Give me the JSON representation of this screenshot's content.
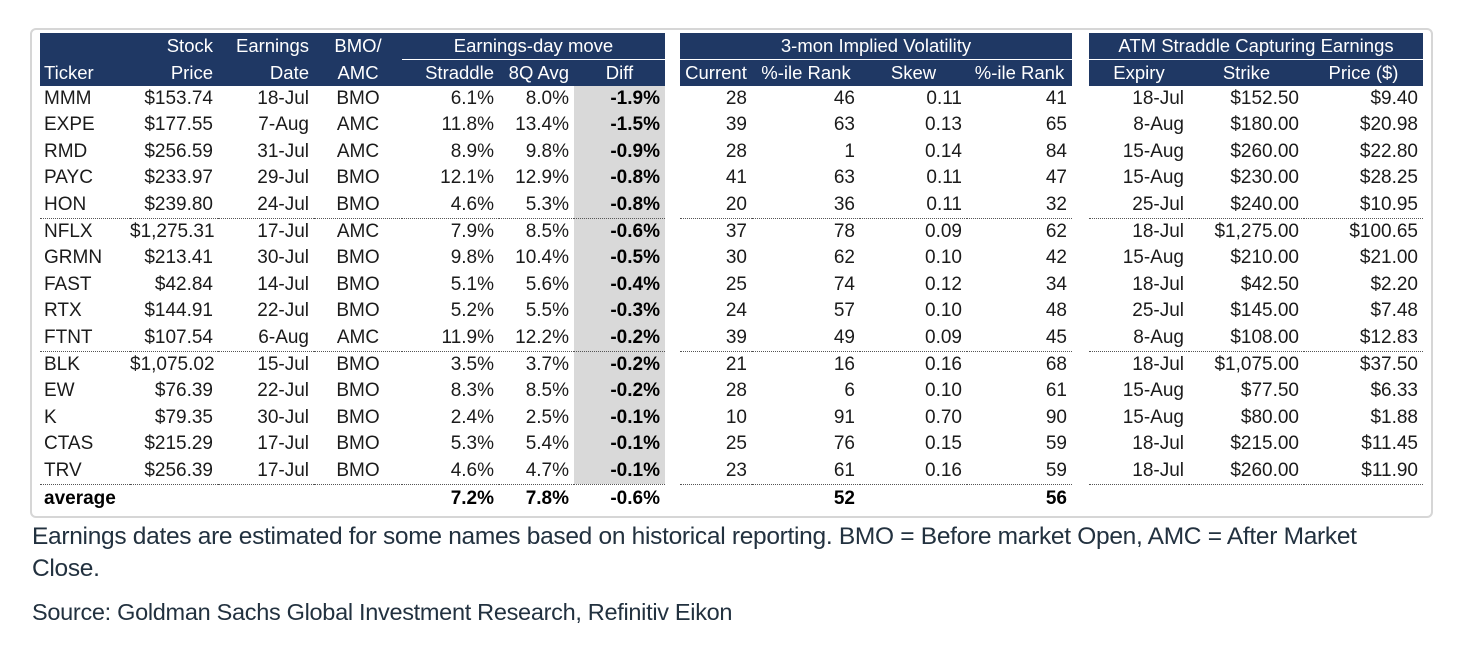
{
  "colors": {
    "header_bg": "#1f3864",
    "diff_column_bg": "#d9d9d9",
    "footnote_text": "#22313f"
  },
  "table": {
    "header": {
      "row1": {
        "stock": "Stock",
        "earnings": "Earnings",
        "bmo": "BMO/"
      },
      "groups": {
        "move": "Earnings-day move",
        "vol": "3-mon Implied Volatility",
        "straddle": "ATM Straddle Capturing Earnings"
      },
      "row2": [
        "Ticker",
        "Price",
        "Date",
        "AMC",
        "Straddle",
        "8Q Avg",
        "Diff",
        "Current",
        "%-ile Rank",
        "Skew",
        "%-ile Rank",
        "Expiry",
        "Strike",
        "Price ($)"
      ]
    }
  },
  "chart_data": {
    "type": "table",
    "title": "",
    "group_columns": [
      {
        "label": "",
        "span": [
          "Ticker",
          "Stock Price",
          "Earnings Date",
          "BMO/AMC"
        ]
      },
      {
        "label": "Earnings-day move",
        "span": [
          "Straddle",
          "8Q Avg",
          "Diff"
        ]
      },
      {
        "label": "3-mon Implied Volatility",
        "span": [
          "Current",
          "%-ile Rank",
          "Skew",
          "%-ile Rank"
        ]
      },
      {
        "label": "ATM Straddle Capturing Earnings",
        "span": [
          "Expiry",
          "Strike",
          "Price ($)"
        ]
      }
    ],
    "columns": [
      "Ticker",
      "Stock Price",
      "Earnings Date",
      "BMO/AMC",
      "Straddle",
      "8Q Avg",
      "Diff",
      "Current",
      "%-ile Rank",
      "Skew",
      "%-ile Rank",
      "Expiry",
      "Strike",
      "Price ($)"
    ],
    "rows": [
      [
        "MMM",
        "$153.74",
        "18-Jul",
        "BMO",
        "6.1%",
        "8.0%",
        "-1.9%",
        "28",
        "46",
        "0.11",
        "41",
        "18-Jul",
        "$152.50",
        "$9.40"
      ],
      [
        "EXPE",
        "$177.55",
        "7-Aug",
        "AMC",
        "11.8%",
        "13.4%",
        "-1.5%",
        "39",
        "63",
        "0.13",
        "65",
        "8-Aug",
        "$180.00",
        "$20.98"
      ],
      [
        "RMD",
        "$256.59",
        "31-Jul",
        "AMC",
        "8.9%",
        "9.8%",
        "-0.9%",
        "28",
        "1",
        "0.14",
        "84",
        "15-Aug",
        "$260.00",
        "$22.80"
      ],
      [
        "PAYC",
        "$233.97",
        "29-Jul",
        "BMO",
        "12.1%",
        "12.9%",
        "-0.8%",
        "41",
        "63",
        "0.11",
        "47",
        "15-Aug",
        "$230.00",
        "$28.25"
      ],
      [
        "HON",
        "$239.80",
        "24-Jul",
        "BMO",
        "4.6%",
        "5.3%",
        "-0.8%",
        "20",
        "36",
        "0.11",
        "32",
        "25-Jul",
        "$240.00",
        "$10.95"
      ],
      [
        "NFLX",
        "$1,275.31",
        "17-Jul",
        "AMC",
        "7.9%",
        "8.5%",
        "-0.6%",
        "37",
        "78",
        "0.09",
        "62",
        "18-Jul",
        "$1,275.00",
        "$100.65"
      ],
      [
        "GRMN",
        "$213.41",
        "30-Jul",
        "BMO",
        "9.8%",
        "10.4%",
        "-0.5%",
        "30",
        "62",
        "0.10",
        "42",
        "15-Aug",
        "$210.00",
        "$21.00"
      ],
      [
        "FAST",
        "$42.84",
        "14-Jul",
        "BMO",
        "5.1%",
        "5.6%",
        "-0.4%",
        "25",
        "74",
        "0.12",
        "34",
        "18-Jul",
        "$42.50",
        "$2.20"
      ],
      [
        "RTX",
        "$144.91",
        "22-Jul",
        "BMO",
        "5.2%",
        "5.5%",
        "-0.3%",
        "24",
        "57",
        "0.10",
        "48",
        "25-Jul",
        "$145.00",
        "$7.48"
      ],
      [
        "FTNT",
        "$107.54",
        "6-Aug",
        "AMC",
        "11.9%",
        "12.2%",
        "-0.2%",
        "39",
        "49",
        "0.09",
        "45",
        "8-Aug",
        "$108.00",
        "$12.83"
      ],
      [
        "BLK",
        "$1,075.02",
        "15-Jul",
        "BMO",
        "3.5%",
        "3.7%",
        "-0.2%",
        "21",
        "16",
        "0.16",
        "68",
        "18-Jul",
        "$1,075.00",
        "$37.50"
      ],
      [
        "EW",
        "$76.39",
        "22-Jul",
        "BMO",
        "8.3%",
        "8.5%",
        "-0.2%",
        "28",
        "6",
        "0.10",
        "61",
        "15-Aug",
        "$77.50",
        "$6.33"
      ],
      [
        "K",
        "$79.35",
        "30-Jul",
        "BMO",
        "2.4%",
        "2.5%",
        "-0.1%",
        "10",
        "91",
        "0.70",
        "90",
        "15-Aug",
        "$80.00",
        "$1.88"
      ],
      [
        "CTAS",
        "$215.29",
        "17-Jul",
        "BMO",
        "5.3%",
        "5.4%",
        "-0.1%",
        "25",
        "76",
        "0.15",
        "59",
        "18-Jul",
        "$215.00",
        "$11.45"
      ],
      [
        "TRV",
        "$256.39",
        "17-Jul",
        "BMO",
        "4.6%",
        "4.7%",
        "-0.1%",
        "23",
        "61",
        "0.16",
        "59",
        "18-Jul",
        "$260.00",
        "$11.90"
      ]
    ],
    "average_row": [
      "average",
      "",
      "",
      "",
      "7.2%",
      "7.8%",
      "-0.6%",
      "",
      "52",
      "",
      "56",
      "",
      "",
      ""
    ],
    "separator_above_rows": [
      5,
      10
    ]
  },
  "footnote": {
    "lines": [
      "Earnings dates are estimated for some names based on historical reporting. BMO = Before market Open, AMC = After Market",
      "Close."
    ]
  },
  "source_line": "Source: Goldman Sachs Global Investment Research, Refinitiv Eikon"
}
